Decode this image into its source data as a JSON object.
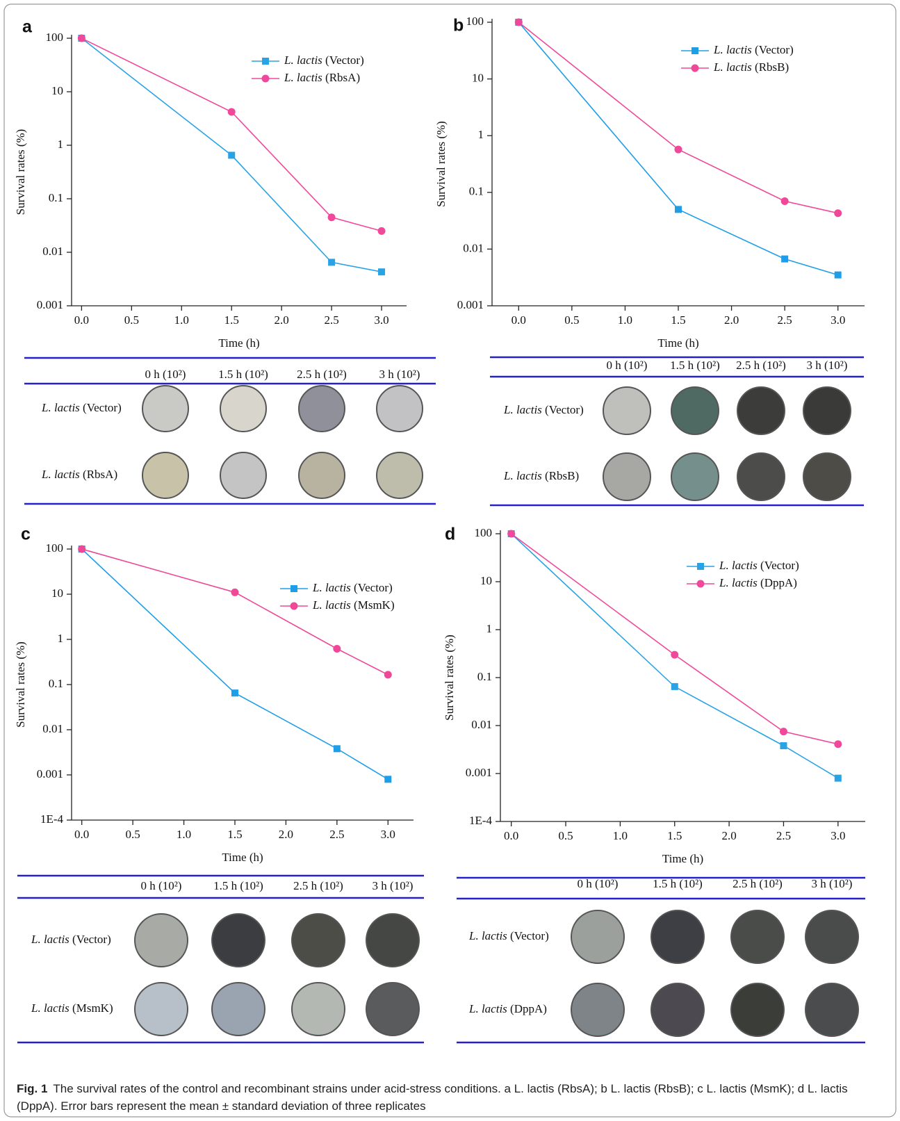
{
  "chart_data": [
    {
      "type": "line",
      "panel_label": "a",
      "x_label": "Time (h)",
      "y_label": "Survival rates (%)",
      "yscale": "log",
      "legend": "upper right",
      "x": [
        0,
        1.5,
        2.5,
        3
      ],
      "xlim": [
        -0.1,
        3.25
      ],
      "xticks": [
        {
          "value": 0,
          "label": "0.0"
        },
        0.5,
        {
          "value": 1,
          "label": "1.0"
        },
        1.5,
        {
          "value": 2,
          "label": "2.0"
        },
        2.5,
        {
          "value": 3,
          "label": "3.0"
        }
      ],
      "ylim": [
        0.001,
        100
      ],
      "yticks": [
        0.001,
        0.01,
        0.1,
        1,
        10,
        100
      ],
      "series": [
        {
          "name": "L. lactis (Vector)",
          "color": "#29a3e6",
          "marker": "square",
          "values": [
            100,
            0.65,
            0.0065,
            0.0043
          ]
        },
        {
          "name": "L. lactis (RbsA)",
          "color": "#f0489a",
          "marker": "circle",
          "values": [
            100,
            4.2,
            0.045,
            0.025
          ]
        }
      ]
    },
    {
      "type": "line",
      "panel_label": "b",
      "x_label": "Time (h)",
      "y_label": "Survival rates (%)",
      "yscale": "log",
      "legend": "upper right",
      "x": [
        0,
        1.5,
        2.5,
        3
      ],
      "xlim": [
        -0.25,
        3.25
      ],
      "xticks": [
        {
          "value": 0,
          "label": "0.0"
        },
        0.5,
        {
          "value": 1,
          "label": "1.0"
        },
        1.5,
        {
          "value": 2,
          "label": "2.0"
        },
        2.5,
        {
          "value": 3,
          "label": "3.0"
        }
      ],
      "ylim": [
        0.001,
        100
      ],
      "yticks": [
        0.001,
        0.01,
        0.1,
        1,
        10,
        100
      ],
      "series": [
        {
          "name": "L. lactis (Vector)",
          "color": "#1e9ee8",
          "marker": "square",
          "values": [
            100,
            0.05,
            0.0067,
            0.0035
          ]
        },
        {
          "name": "L. lactis (RbsB)",
          "color": "#ef4898",
          "marker": "circle",
          "values": [
            100,
            0.57,
            0.07,
            0.043
          ]
        }
      ]
    },
    {
      "type": "line",
      "panel_label": "c",
      "x_label": "Time (h)",
      "y_label": "Survival rates (%)",
      "yscale": "log",
      "legend": "upper right",
      "x": [
        0,
        1.5,
        2.5,
        3
      ],
      "xlim": [
        -0.1,
        3.25
      ],
      "xticks": [
        {
          "value": 0,
          "label": "0.0"
        },
        0.5,
        {
          "value": 1,
          "label": "1.0"
        },
        1.5,
        {
          "value": 2,
          "label": "2.0"
        },
        2.5,
        {
          "value": 3,
          "label": "3.0"
        }
      ],
      "ylim": [
        0.0001,
        100
      ],
      "yticks": [
        {
          "value": 0.0001,
          "label": "1E-4"
        },
        0.001,
        0.01,
        0.1,
        1,
        10,
        100
      ],
      "series": [
        {
          "name": "L. lactis (Vector)",
          "color": "#1e9ee8",
          "marker": "square",
          "values": [
            100,
            0.065,
            0.0038,
            0.0008
          ]
        },
        {
          "name": "L. lactis (MsmK)",
          "color": "#ef4898",
          "marker": "circle",
          "values": [
            100,
            11,
            0.62,
            0.165
          ]
        }
      ]
    },
    {
      "type": "line",
      "panel_label": "d",
      "x_label": "Time (h)",
      "y_label": "Survival rates (%)",
      "yscale": "log",
      "legend": "upper right",
      "x": [
        0,
        1.5,
        2.5,
        3
      ],
      "xlim": [
        -0.1,
        3.25
      ],
      "xticks": [
        {
          "value": 0,
          "label": "0.0"
        },
        0.5,
        {
          "value": 1,
          "label": "1.0"
        },
        1.5,
        {
          "value": 2,
          "label": "2.0"
        },
        2.5,
        {
          "value": 3,
          "label": "3.0"
        }
      ],
      "ylim": [
        0.0001,
        100
      ],
      "yticks": [
        {
          "value": 0.0001,
          "label": "1E-4"
        },
        0.001,
        0.01,
        0.1,
        1,
        10,
        100
      ],
      "series": [
        {
          "name": "L. lactis (Vector)",
          "color": "#29a3e6",
          "marker": "square",
          "values": [
            100,
            0.065,
            0.0038,
            0.0008
          ]
        },
        {
          "name": "L. lactis (DppA)",
          "color": "#f0489a",
          "marker": "circle",
          "values": [
            100,
            0.3,
            0.0075,
            0.0041
          ]
        }
      ]
    }
  ],
  "plate_tables": [
    {
      "headers": [
        "0 h (10²)",
        "1.5 h (10²)",
        "2.5 h (10²)",
        "3 h (10²)"
      ],
      "rows": [
        "L. lactis (Vector)",
        "L. lactis (RbsA)"
      ]
    },
    {
      "headers": [
        "0 h (10²)",
        "1.5 h (10²)",
        "2.5 h (10²)",
        "3 h (10²)"
      ],
      "rows": [
        "L. lactis (Vector)",
        "L. lactis (RbsB)"
      ]
    },
    {
      "headers": [
        "0 h (10²)",
        "1.5 h (10²)",
        "2.5 h (10²)",
        "3 h (10²)"
      ],
      "rows": [
        "L. lactis (Vector)",
        "L. lactis (MsmK)"
      ]
    },
    {
      "headers": [
        "0 h (10²)",
        "1.5 h (10²)",
        "2.5 h (10²)",
        "3 h (10²)"
      ],
      "rows": [
        "L. lactis (Vector)",
        "L. lactis (DppA)"
      ]
    }
  ],
  "caption": {
    "label": "Fig. 1",
    "text": "The survival rates of the control and recombinant strains under acid-stress conditions. a L. lactis (RbsA); b L. lactis (RbsB); c L. lactis (MsmK); d L. lactis (DppA). Error bars represent the mean ± standard deviation of three replicates"
  }
}
